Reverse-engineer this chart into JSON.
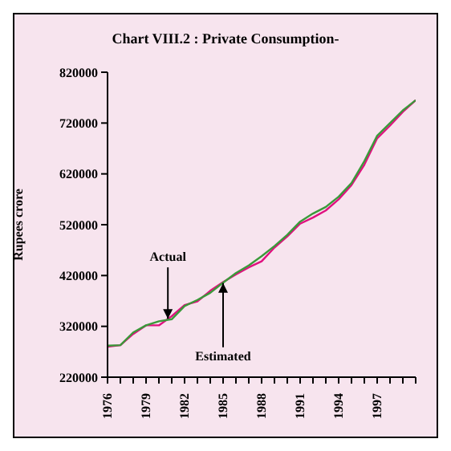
{
  "chart_data": {
    "type": "line",
    "title": "Chart VIII.2 : Private Consumption-",
    "ylabel": "Rupees crore",
    "x": [
      1976,
      1977,
      1978,
      1979,
      1980,
      1981,
      1982,
      1983,
      1984,
      1985,
      1986,
      1987,
      1988,
      1989,
      1990,
      1991,
      1992,
      1993,
      1994,
      1995,
      1996,
      1997,
      1998,
      1999,
      2000
    ],
    "series": [
      {
        "color": "#e0107f",
        "values": [
          280000,
          283000,
          305000,
          322000,
          322000,
          340000,
          362000,
          369000,
          390000,
          407000,
          422000,
          436000,
          448000,
          475000,
          497000,
          522000,
          534000,
          548000,
          570000,
          598000,
          638000,
          690000,
          715000,
          742000,
          765000
        ]
      },
      {
        "color": "#3a9a3a",
        "values": [
          282000,
          283000,
          308000,
          322000,
          330000,
          334000,
          360000,
          372000,
          386000,
          406000,
          425000,
          440000,
          458000,
          478000,
          500000,
          526000,
          542000,
          555000,
          575000,
          602000,
          645000,
          695000,
          720000,
          745000,
          765000
        ]
      }
    ],
    "annotations": [
      {
        "text": "Actual",
        "x": 1980.7,
        "y": 335000
      },
      {
        "text": "Estimated",
        "x": 1985,
        "y": 405000
      }
    ],
    "xlim": [
      1976,
      2000
    ],
    "xticks": [
      1976,
      {
        "value": 1977,
        "label": null
      },
      {
        "value": 1978,
        "label": null
      },
      1979,
      {
        "value": 1980,
        "label": null
      },
      {
        "value": 1981,
        "label": null
      },
      1982,
      {
        "value": 1983,
        "label": null
      },
      {
        "value": 1984,
        "label": null
      },
      1985,
      {
        "value": 1986,
        "label": null
      },
      {
        "value": 1987,
        "label": null
      },
      1988,
      {
        "value": 1989,
        "label": null
      },
      {
        "value": 1990,
        "label": null
      },
      1991,
      {
        "value": 1992,
        "label": null
      },
      {
        "value": 1993,
        "label": null
      },
      1994,
      {
        "value": 1995,
        "label": null
      },
      {
        "value": 1996,
        "label": null
      },
      1997,
      {
        "value": 1998,
        "label": null
      },
      {
        "value": 1999,
        "label": null
      },
      {
        "value": 2000,
        "label": null
      }
    ],
    "ylim": [
      220000,
      820000
    ],
    "yticks": [
      220000,
      320000,
      420000,
      520000,
      620000,
      720000,
      820000
    ],
    "grid": false,
    "legend": false,
    "marker": "none",
    "line_style": "solid"
  }
}
